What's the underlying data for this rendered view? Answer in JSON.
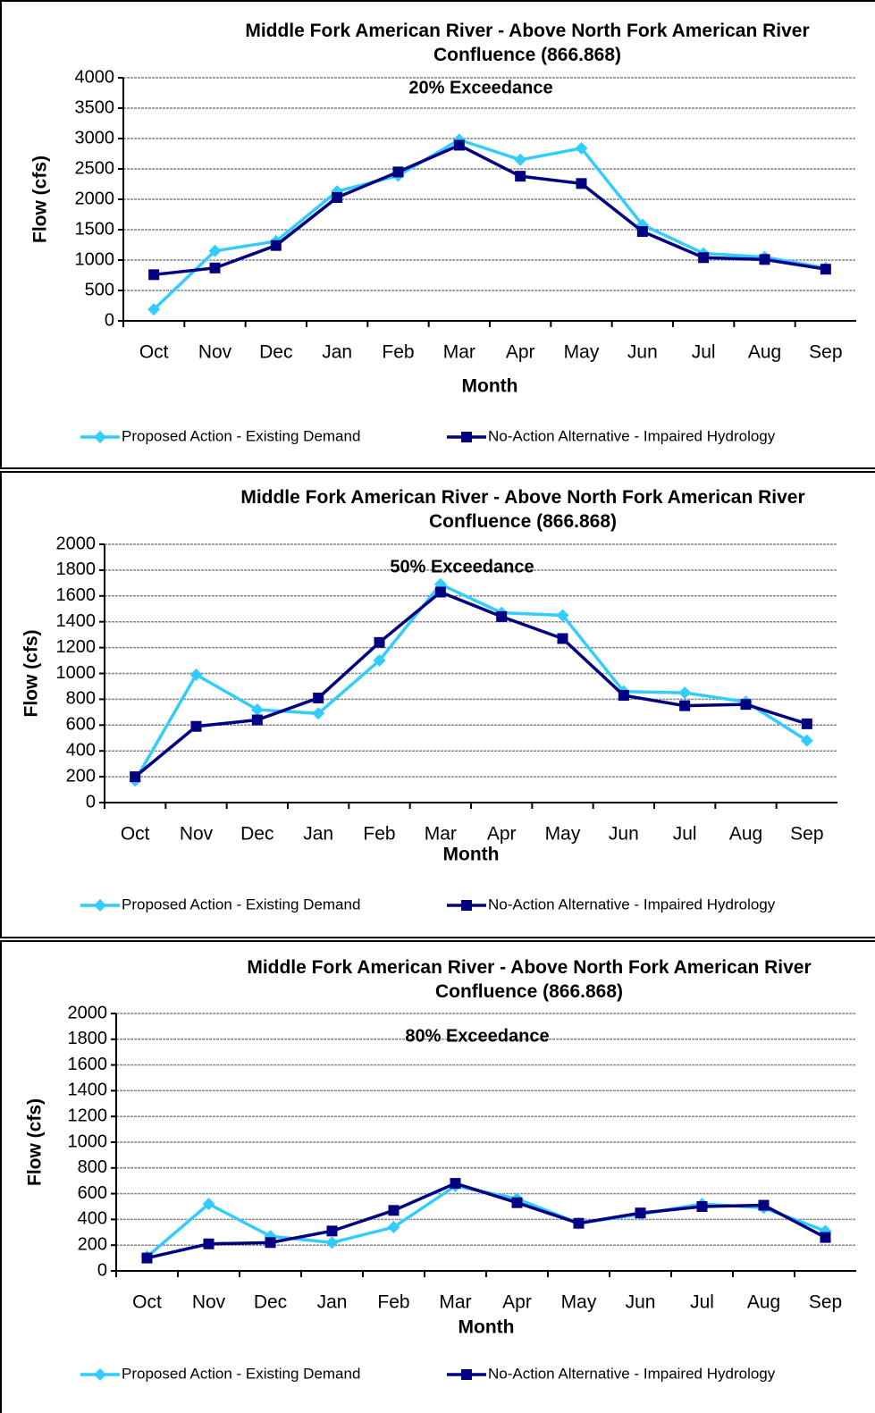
{
  "chart_data": [
    {
      "type": "line",
      "title": "Middle Fork American River - Above North Fork American River\nConfluence (866.868)",
      "subtitle": "20% Exceedance",
      "x_label": "Month",
      "y_label": "Flow (cfs)",
      "categories": [
        "Oct",
        "Nov",
        "Dec",
        "Jan",
        "Feb",
        "Mar",
        "Apr",
        "May",
        "Jun",
        "Jul",
        "Aug",
        "Sep"
      ],
      "series": [
        {
          "name": "Proposed Action - Existing Demand",
          "color": "#33ccff",
          "marker": "diamond",
          "values": [
            190,
            1150,
            1310,
            2130,
            2390,
            2980,
            2650,
            2840,
            1580,
            1110,
            1050,
            870
          ]
        },
        {
          "name": "No-Action Alternative - Impaired Hydrology",
          "color": "#000080",
          "marker": "square",
          "values": [
            760,
            870,
            1240,
            2030,
            2450,
            2890,
            2380,
            2260,
            1470,
            1040,
            1010,
            850
          ]
        }
      ],
      "ylim": [
        0,
        4000
      ],
      "yticks": [
        0,
        500,
        1000,
        1500,
        2000,
        2500,
        3000,
        3500,
        4000
      ],
      "grid": true,
      "legend": "bottom"
    },
    {
      "type": "line",
      "title": "Middle Fork American River - Above North Fork American River\nConfluence (866.868)",
      "subtitle": "50% Exceedance",
      "x_label": "Month",
      "y_label": "Flow (cfs)",
      "categories": [
        "Oct",
        "Nov",
        "Dec",
        "Jan",
        "Feb",
        "Mar",
        "Apr",
        "May",
        "Jun",
        "Jul",
        "Aug",
        "Sep"
      ],
      "series": [
        {
          "name": "Proposed Action - Existing Demand",
          "color": "#33ccff",
          "marker": "diamond",
          "values": [
            170,
            990,
            720,
            690,
            1100,
            1690,
            1470,
            1450,
            860,
            850,
            780,
            480
          ]
        },
        {
          "name": "No-Action Alternative - Impaired Hydrology",
          "color": "#000080",
          "marker": "square",
          "values": [
            200,
            590,
            640,
            810,
            1240,
            1630,
            1440,
            1270,
            830,
            750,
            760,
            610
          ]
        }
      ],
      "ylim": [
        0,
        2000
      ],
      "yticks": [
        0,
        200,
        400,
        600,
        800,
        1000,
        1200,
        1400,
        1600,
        1800,
        2000
      ],
      "grid": true,
      "legend": "bottom"
    },
    {
      "type": "line",
      "title": "Middle Fork American River - Above North Fork American River\nConfluence (866.868)",
      "subtitle": "80% Exceedance",
      "x_label": "Month",
      "y_label": "Flow (cfs)",
      "categories": [
        "Oct",
        "Nov",
        "Dec",
        "Jan",
        "Feb",
        "Mar",
        "Apr",
        "May",
        "Jun",
        "Jul",
        "Aug",
        "Sep"
      ],
      "series": [
        {
          "name": "Proposed Action - Existing Demand",
          "color": "#33ccff",
          "marker": "diamond",
          "values": [
            110,
            520,
            270,
            220,
            340,
            660,
            560,
            370,
            440,
            520,
            490,
            310
          ]
        },
        {
          "name": "No-Action Alternative - Impaired Hydrology",
          "color": "#000080",
          "marker": "square",
          "values": [
            100,
            210,
            220,
            310,
            470,
            680,
            530,
            370,
            450,
            500,
            510,
            260
          ]
        }
      ],
      "ylim": [
        0,
        2000
      ],
      "yticks": [
        0,
        200,
        400,
        600,
        800,
        1000,
        1200,
        1400,
        1600,
        1800,
        2000
      ],
      "grid": true,
      "legend": "bottom"
    }
  ]
}
